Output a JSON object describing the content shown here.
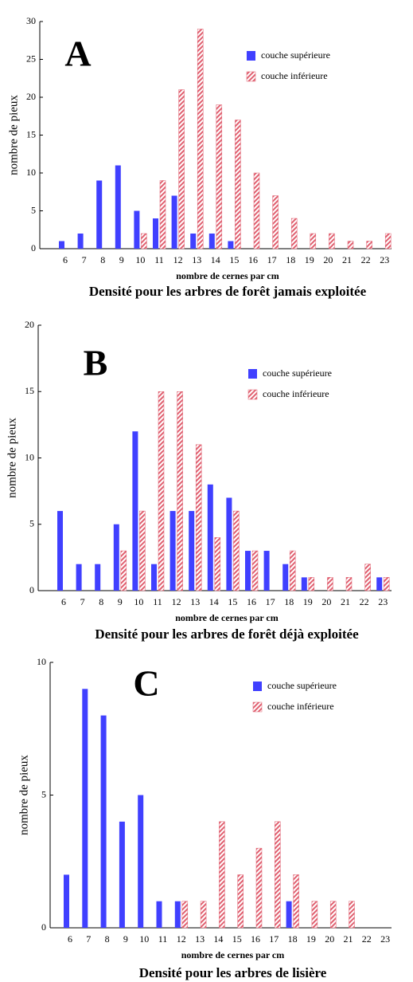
{
  "chart_data": [
    {
      "type": "bar",
      "annotation": "A",
      "title": "Densité pour les arbres de forêt jamais exploitée",
      "xlabel": "nombre de cernes par cm",
      "ylabel": "nombre de pieux",
      "categories": [
        "6",
        "7",
        "8",
        "9",
        "10",
        "11",
        "12",
        "13",
        "14",
        "15",
        "16",
        "17",
        "18",
        "19",
        "20",
        "21",
        "22",
        "23"
      ],
      "series": [
        {
          "name": "couche supérieure",
          "color": "#4040ff",
          "values": [
            1,
            2,
            9,
            11,
            5,
            4,
            7,
            2,
            2,
            1,
            0,
            0,
            0,
            0,
            0,
            0,
            0,
            0
          ]
        },
        {
          "name": "couche inférieure",
          "color": "#e06070",
          "values": [
            0,
            0,
            0,
            0,
            2,
            9,
            21,
            29,
            19,
            17,
            10,
            7,
            4,
            2,
            2,
            1,
            1,
            2
          ]
        }
      ],
      "ylim": [
        0,
        30
      ],
      "yticks": [
        0,
        5,
        10,
        15,
        20,
        25,
        30
      ]
    },
    {
      "type": "bar",
      "annotation": "B",
      "title": "Densité pour les arbres de forêt déjà exploitée",
      "xlabel": "nombre de cernes par cm",
      "ylabel": "nombre de pieux",
      "categories": [
        "6",
        "7",
        "8",
        "9",
        "10",
        "11",
        "12",
        "13",
        "14",
        "15",
        "16",
        "17",
        "18",
        "19",
        "20",
        "21",
        "22",
        "23"
      ],
      "series": [
        {
          "name": "couche supérieure",
          "color": "#4040ff",
          "values": [
            6,
            2,
            2,
            5,
            12,
            2,
            6,
            6,
            8,
            7,
            3,
            3,
            2,
            1,
            0,
            0,
            0,
            1
          ]
        },
        {
          "name": "couche inférieure",
          "color": "#e06070",
          "values": [
            0,
            0,
            0,
            3,
            6,
            15,
            15,
            11,
            4,
            6,
            3,
            0,
            3,
            1,
            1,
            1,
            2,
            1
          ]
        }
      ],
      "ylim": [
        0,
        20
      ],
      "yticks": [
        0,
        5,
        10,
        15,
        20
      ]
    },
    {
      "type": "bar",
      "annotation": "C",
      "title": "Densité pour les arbres de lisière",
      "xlabel": "nombre de cernes par cm",
      "ylabel": "nombre de pieux",
      "categories": [
        "6",
        "7",
        "8",
        "9",
        "10",
        "11",
        "12",
        "13",
        "14",
        "15",
        "16",
        "17",
        "18",
        "19",
        "20",
        "21",
        "22",
        "23"
      ],
      "series": [
        {
          "name": "couche supérieure",
          "color": "#4040ff",
          "values": [
            2,
            9,
            8,
            4,
            5,
            1,
            1,
            0,
            0,
            0,
            0,
            0,
            1,
            0,
            0,
            0,
            0,
            0
          ]
        },
        {
          "name": "couche inférieure",
          "color": "#e06070",
          "values": [
            0,
            0,
            0,
            0,
            0,
            0,
            1,
            1,
            4,
            2,
            3,
            4,
            2,
            1,
            1,
            1,
            0,
            0
          ]
        }
      ],
      "ylim": [
        0,
        10
      ],
      "yticks": [
        0,
        5,
        10
      ]
    }
  ]
}
